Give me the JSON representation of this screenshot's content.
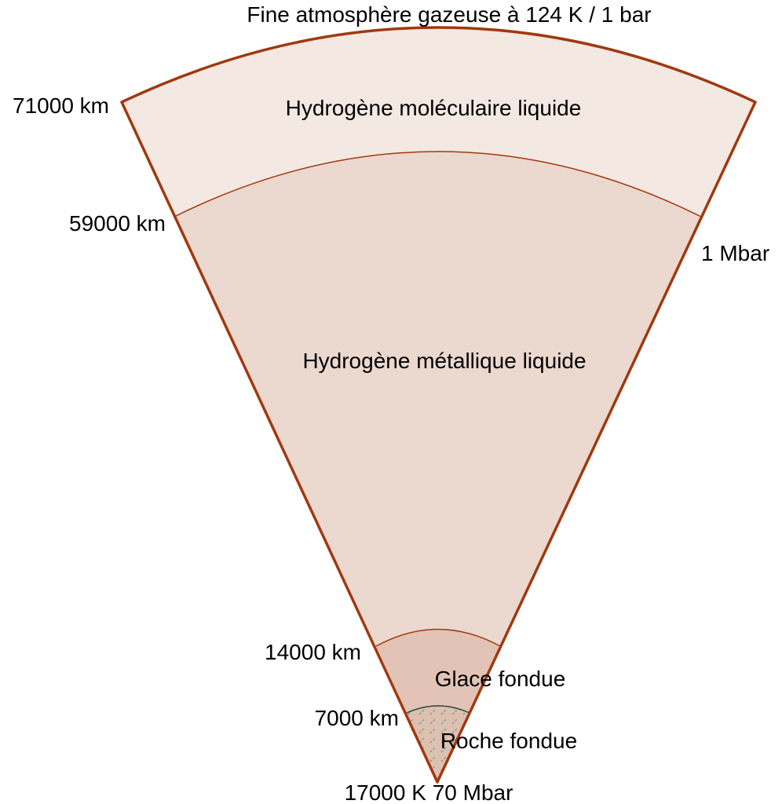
{
  "header": {
    "atmosphere_label": "Fine atmosphère gazeuse à 124 K / 1 bar"
  },
  "layers": [
    {
      "label": "Hydrogène moléculaire liquide",
      "color": "#f4e8e3"
    },
    {
      "label": "Hydrogène métallique liquide",
      "color": "#ebd8cf"
    },
    {
      "label": "Glace fondue",
      "color": "#e2c3b6"
    },
    {
      "label": "Roche fondue",
      "color": "#dcc0b0"
    }
  ],
  "radius_labels": {
    "outer": "71000 km",
    "metallic_boundary": "59000 km",
    "ice_boundary": "14000 km",
    "rock_boundary": "7000 km"
  },
  "pressure_labels": {
    "metallic_boundary": "1 Mbar",
    "center": "17000 K 70 Mbar"
  },
  "colors": {
    "outline": "#a0390f",
    "rock_boundary": "#1f4a47",
    "hatch": "#6a8a88"
  }
}
